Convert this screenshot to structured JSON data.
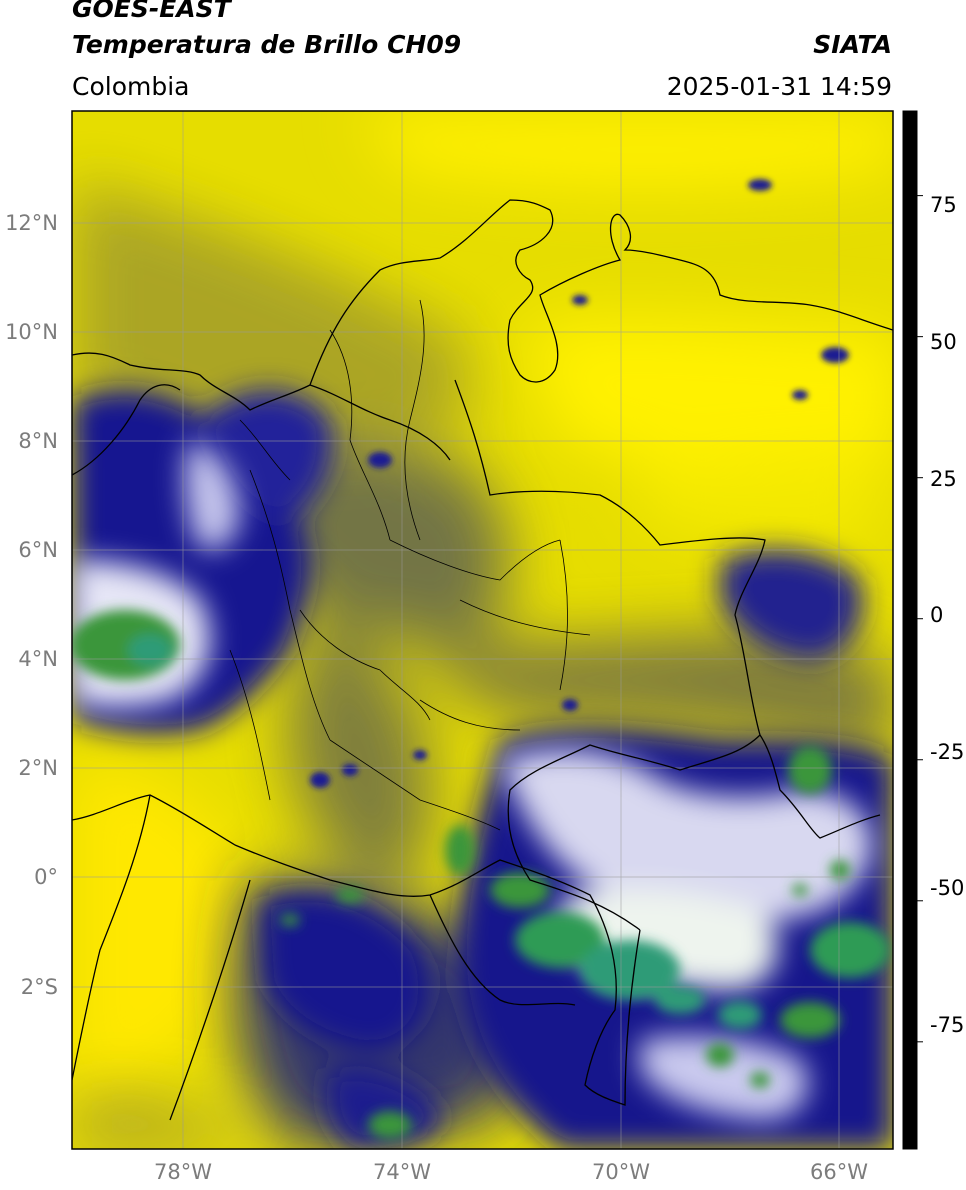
{
  "header": {
    "title_line1": "GOES-EAST",
    "title_line2": "Temperatura de Brillo CH09",
    "region": "Colombia",
    "source": "SIATA",
    "datetime": "2025-01-31 14:59"
  },
  "lat_ticks": [
    "12°N",
    "10°N",
    "8°N",
    "6°N",
    "4°N",
    "2°N",
    "0°",
    "2°S"
  ],
  "lon_ticks": [
    "78°W",
    "74°W",
    "70°W",
    "66°W"
  ],
  "colorbar": {
    "ticks": [
      "75",
      "50",
      "25",
      "0",
      "-25",
      "-50",
      "-75"
    ],
    "stops": [
      {
        "value": 90,
        "color": "#000000"
      },
      {
        "value": 8,
        "color": "#000000"
      },
      {
        "value": 7.9,
        "color": "#ff1a00"
      },
      {
        "value": 0,
        "color": "#ff7000"
      },
      {
        "value": -8,
        "color": "#ffd500"
      },
      {
        "value": -14,
        "color": "#fff200"
      },
      {
        "value": -20,
        "color": "#c9c400"
      },
      {
        "value": -25,
        "color": "#555a55"
      },
      {
        "value": -28,
        "color": "#0b0b8a"
      },
      {
        "value": -35,
        "color": "#101094"
      },
      {
        "value": -45,
        "color": "#a9a9dc"
      },
      {
        "value": -50,
        "color": "#ffffff"
      },
      {
        "value": -58,
        "color": "#3d9a3d"
      },
      {
        "value": -70,
        "color": "#2f9b77"
      },
      {
        "value": -82,
        "color": "#30c6c0"
      },
      {
        "value": -88,
        "color": "#00e0e0"
      },
      {
        "value": -89.5,
        "color": "#ffffff"
      },
      {
        "value": -94,
        "color": "#ffffff"
      }
    ]
  }
}
